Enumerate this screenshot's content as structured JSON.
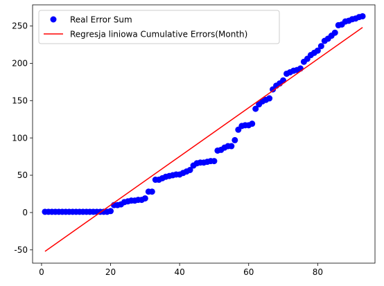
{
  "chart_data": {
    "type": "scatter",
    "title": "",
    "xlabel": "",
    "ylabel": "",
    "xlim": [
      -2.6,
      96.6
    ],
    "ylim": [
      -67.8,
      278.3
    ],
    "xticks": [
      0,
      20,
      40,
      60,
      80
    ],
    "yticks": [
      -50,
      0,
      50,
      100,
      150,
      200,
      250
    ],
    "grid": false,
    "legend_position": "top-left",
    "series": [
      {
        "name": "Real Error Sum",
        "kind": "scatter",
        "color": "#0000ff",
        "x": [
          1,
          2,
          3,
          4,
          5,
          6,
          7,
          8,
          9,
          10,
          11,
          12,
          13,
          14,
          15,
          16,
          17,
          18,
          19,
          20,
          21,
          22,
          23,
          24,
          25,
          26,
          27,
          28,
          29,
          30,
          31,
          32,
          33,
          34,
          35,
          36,
          37,
          38,
          39,
          40,
          41,
          42,
          43,
          44,
          45,
          46,
          47,
          48,
          49,
          50,
          51,
          52,
          53,
          54,
          55,
          56,
          57,
          58,
          59,
          60,
          61,
          62,
          63,
          64,
          65,
          66,
          67,
          68,
          69,
          70,
          71,
          72,
          73,
          74,
          75,
          76,
          77,
          78,
          79,
          80,
          81,
          82,
          83,
          84,
          85,
          86,
          87,
          88,
          89,
          90,
          91,
          92,
          93
        ],
        "y": [
          1,
          1,
          1,
          1,
          1,
          1,
          1,
          1,
          1,
          1,
          1,
          1,
          1,
          1,
          1,
          1,
          1,
          1,
          1,
          2,
          10,
          10,
          11,
          14,
          15,
          16,
          16,
          17,
          17,
          19,
          28,
          28,
          44,
          44,
          46,
          48,
          49,
          50,
          51,
          51,
          53,
          55,
          57,
          63,
          66,
          67,
          67,
          68,
          69,
          69,
          83,
          84,
          87,
          89,
          89,
          97,
          111,
          116,
          117,
          117,
          119,
          139,
          145,
          149,
          151,
          153,
          165,
          170,
          173,
          177,
          186,
          188,
          190,
          191,
          193,
          202,
          206,
          211,
          214,
          217,
          223,
          230,
          233,
          237,
          241,
          251,
          252,
          256,
          257,
          259,
          260,
          262,
          263
        ]
      },
      {
        "name": "Regresja liniowa Cumulative Errors(Month)",
        "kind": "line",
        "color": "#ff0000",
        "x": [
          1,
          93
        ],
        "y": [
          -52,
          248
        ]
      }
    ]
  }
}
